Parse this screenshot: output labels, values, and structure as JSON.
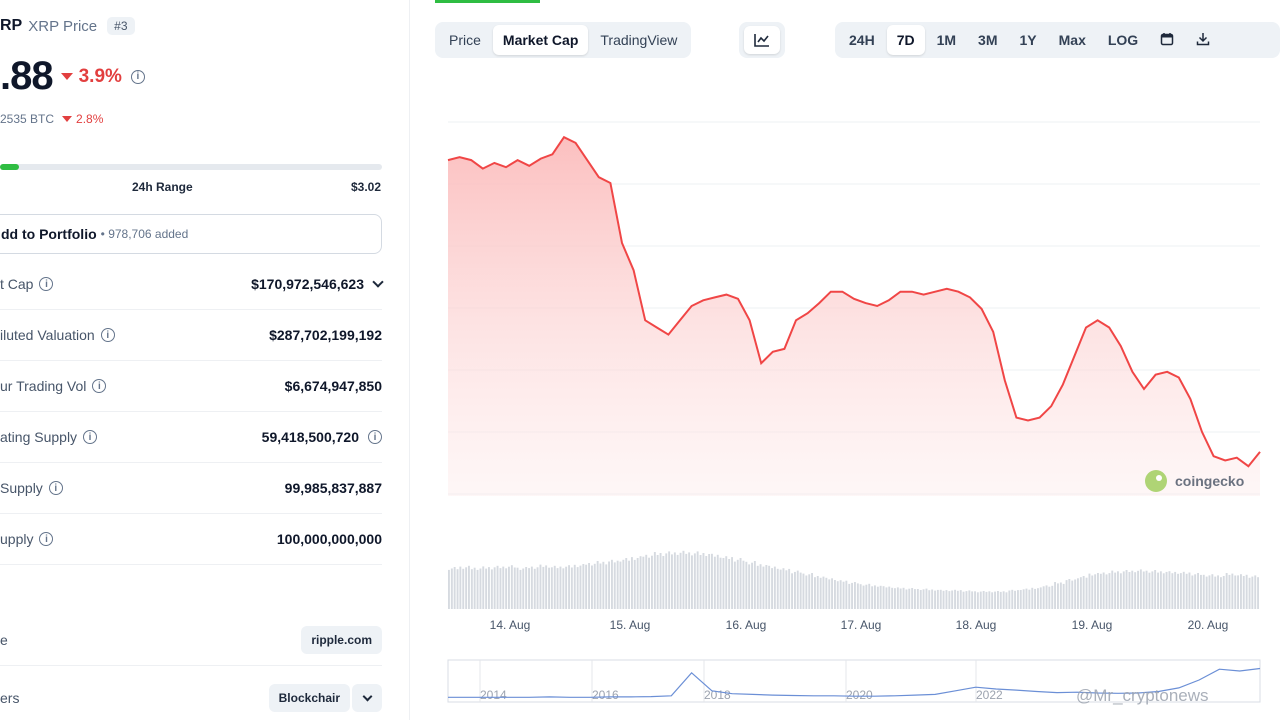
{
  "coin": {
    "symbol": "RP",
    "name": "XRP Price",
    "rank": "#3",
    "price": ".88",
    "change_24h": "3.9%",
    "btc_price": "2535 BTC",
    "btc_change": "2.8%"
  },
  "range": {
    "label": "24h Range",
    "high": "$3.02",
    "position_fraction": 0.05
  },
  "portfolio": {
    "label": "dd to Portfolio",
    "added": "• 978,706 added"
  },
  "stats": [
    {
      "label": "t Cap",
      "value": "$170,972,546,623",
      "chevron": true,
      "value_info": false
    },
    {
      "label": "iluted Valuation",
      "value": "$287,702,199,192",
      "chevron": false,
      "value_info": false
    },
    {
      "label": "ur Trading Vol",
      "value": "$6,674,947,850",
      "chevron": false,
      "value_info": false
    },
    {
      "label": "ating Supply",
      "value": "59,418,500,720",
      "chevron": false,
      "value_info": true
    },
    {
      "label": "Supply",
      "value": "99,985,837,887",
      "chevron": false,
      "value_info": false
    },
    {
      "label": "upply",
      "value": "100,000,000,000",
      "chevron": false,
      "value_info": false
    }
  ],
  "links": [
    {
      "label": "e",
      "chip": "ripple.com"
    },
    {
      "label": "ers",
      "chip": "Blockchair"
    }
  ],
  "view_tabs": [
    "Price",
    "Market Cap",
    "TradingView"
  ],
  "active_view": "Market Cap",
  "range_tabs": [
    "24H",
    "7D",
    "1M",
    "3M",
    "1Y",
    "Max",
    "LOG"
  ],
  "active_range": "7D",
  "icons": {
    "chart_type": "line-chart-icon",
    "calendar": "calendar-icon",
    "download": "download-icon",
    "info": "info-icon"
  },
  "colors": {
    "negative": "#e23f3f",
    "positive": "#2fbd42",
    "line": "#f04646",
    "area_top": "#fdd0d0"
  },
  "watermark": {
    "brand": "coingecko",
    "overlay": "@Mr_cryptonews"
  },
  "chart_data": {
    "type": "area",
    "x_ticks": [
      "14. Aug",
      "15. Aug",
      "16. Aug",
      "17. Aug",
      "18. Aug",
      "19. Aug",
      "20. Aug"
    ],
    "values": [
      0.62,
      0.64,
      0.62,
      0.56,
      0.6,
      0.57,
      0.62,
      0.58,
      0.63,
      0.66,
      0.78,
      0.74,
      0.62,
      0.5,
      0.46,
      0.04,
      -0.15,
      -0.5,
      -0.55,
      -0.6,
      -0.5,
      -0.4,
      -0.36,
      -0.34,
      -0.32,
      -0.35,
      -0.5,
      -0.8,
      -0.72,
      -0.7,
      -0.5,
      -0.45,
      -0.38,
      -0.3,
      -0.3,
      -0.35,
      -0.38,
      -0.4,
      -0.36,
      -0.3,
      -0.3,
      -0.32,
      -0.3,
      -0.28,
      -0.3,
      -0.34,
      -0.42,
      -0.58,
      -0.92,
      -1.18,
      -1.2,
      -1.18,
      -1.1,
      -0.95,
      -0.75,
      -0.55,
      -0.5,
      -0.55,
      -0.68,
      -0.86,
      -0.98,
      -0.88,
      -0.86,
      -0.9,
      -1.05,
      -1.28,
      -1.45,
      -1.48,
      -1.46,
      -1.52,
      -1.42
    ],
    "series_name": "",
    "volume": [
      0.7,
      0.72,
      0.7,
      0.71,
      0.72,
      0.73,
      0.7,
      0.72,
      0.74,
      0.72,
      0.73,
      0.75,
      0.78,
      0.8,
      0.82,
      0.85,
      0.88,
      0.92,
      0.95,
      0.96,
      0.97,
      0.96,
      0.95,
      0.92,
      0.88,
      0.85,
      0.8,
      0.76,
      0.72,
      0.68,
      0.64,
      0.6,
      0.56,
      0.52,
      0.48,
      0.45,
      0.42,
      0.4,
      0.38,
      0.36,
      0.35,
      0.34,
      0.33,
      0.32,
      0.32,
      0.31,
      0.3,
      0.3,
      0.3,
      0.32,
      0.34,
      0.36,
      0.4,
      0.45,
      0.5,
      0.55,
      0.6,
      0.62,
      0.64,
      0.65,
      0.66,
      0.65,
      0.64,
      0.63,
      0.62,
      0.6,
      0.58,
      0.57,
      0.6,
      0.58,
      0.56
    ],
    "overview": {
      "x_ticks": [
        "2014",
        "2016",
        "2018",
        "2020",
        "2022"
      ],
      "values": [
        0.02,
        0.02,
        0.02,
        0.02,
        0.02,
        0.03,
        0.02,
        0.02,
        0.03,
        0.03,
        0.04,
        0.06,
        0.7,
        0.2,
        0.12,
        0.1,
        0.08,
        0.07,
        0.06,
        0.06,
        0.05,
        0.05,
        0.06,
        0.08,
        0.1,
        0.2,
        0.3,
        0.25,
        0.22,
        0.18,
        0.15,
        0.16,
        0.14,
        0.13,
        0.14,
        0.18,
        0.28,
        0.5,
        0.8,
        0.75,
        0.82
      ]
    }
  }
}
